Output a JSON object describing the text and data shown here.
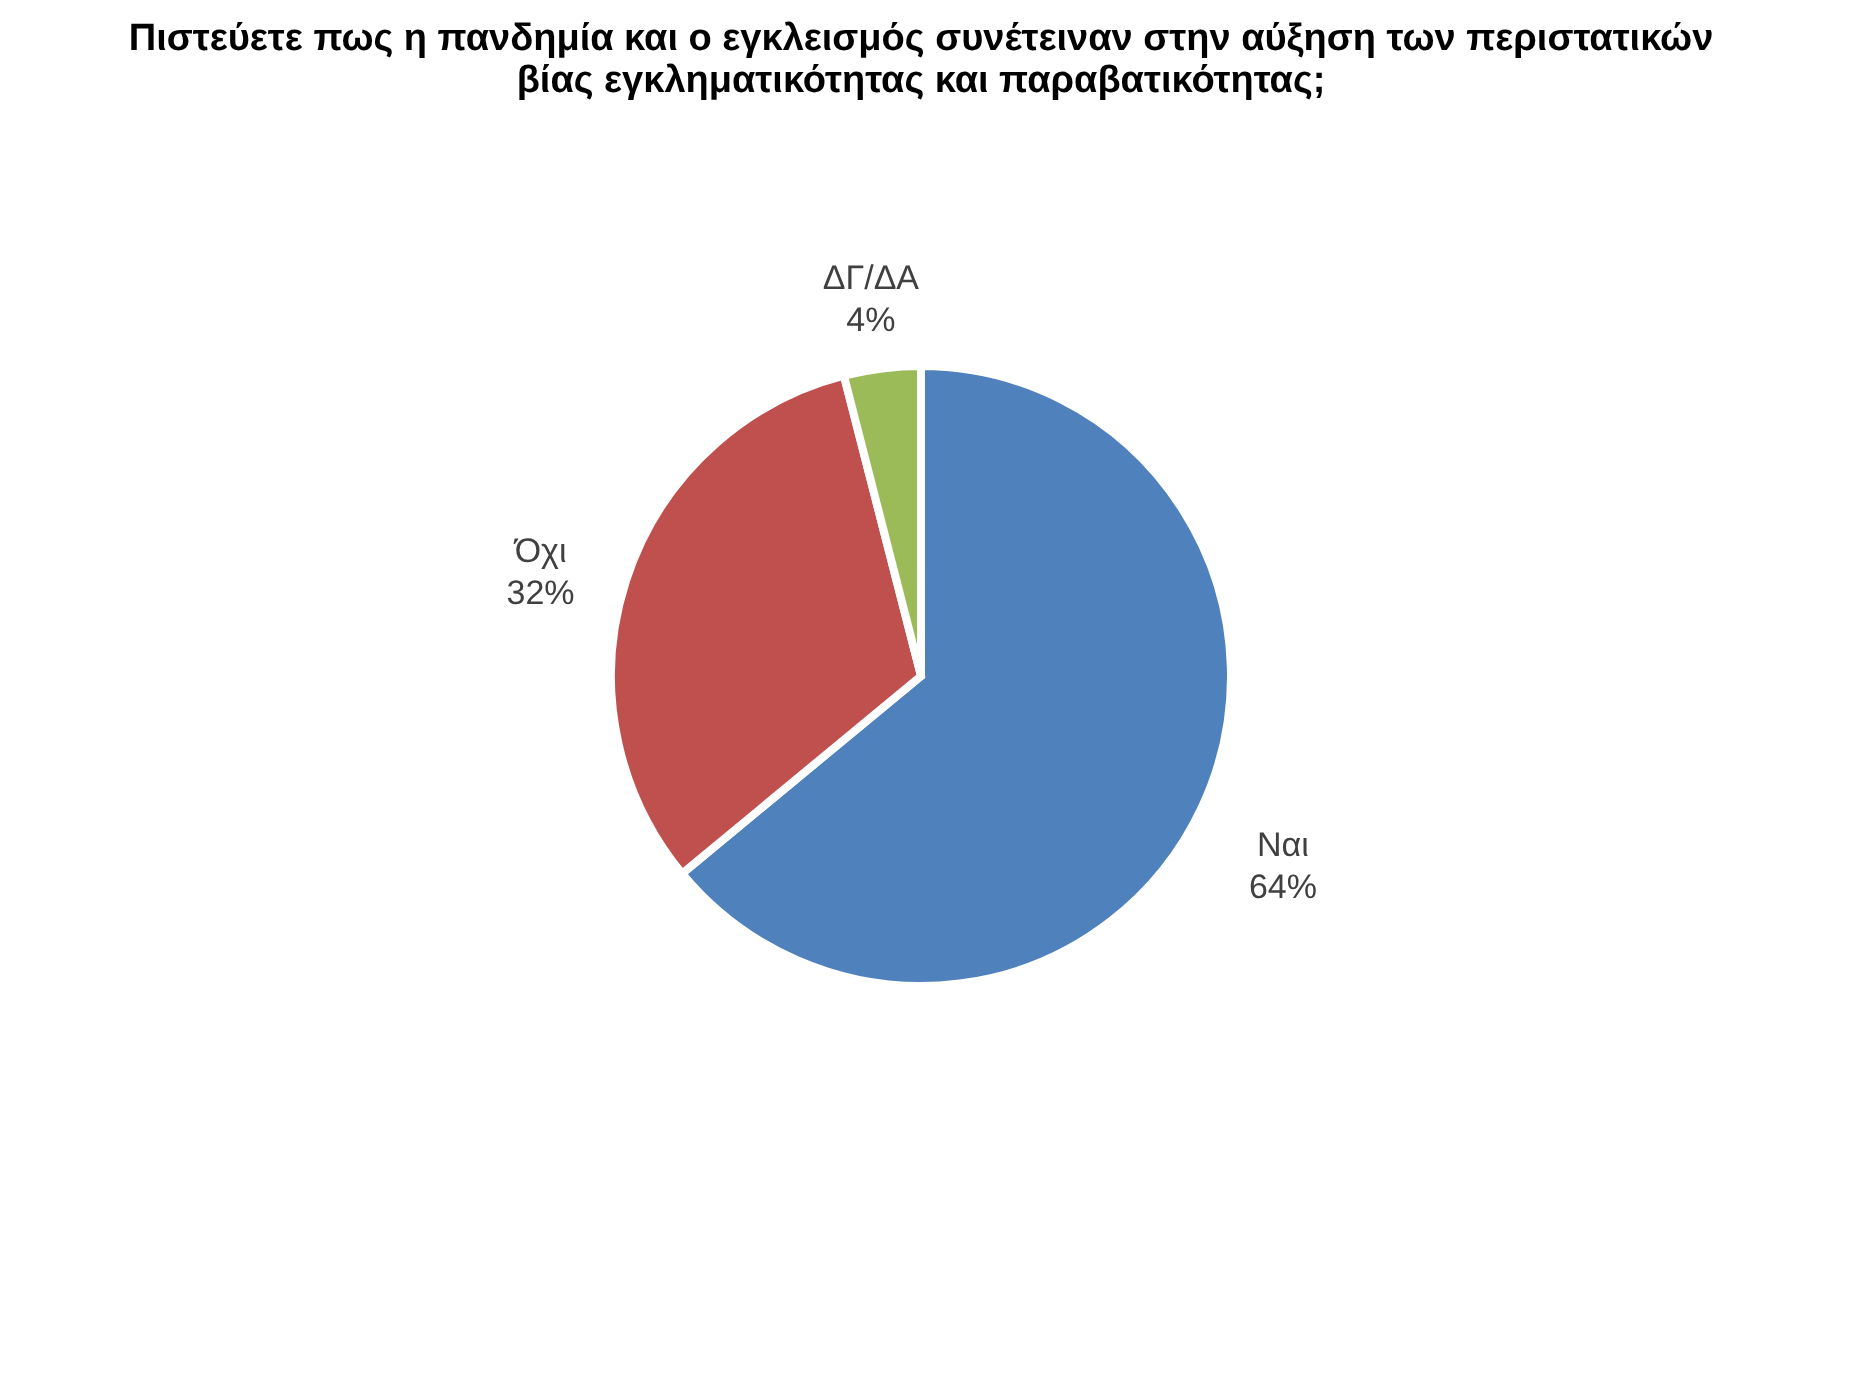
{
  "chart_data": {
    "type": "pie",
    "title": "Πιστεύετε πως η πανδημία και ο εγκλεισμός συνέτειναν στην αύξηση των περιστατικών βίας εγκληματικότητας και παραβατικότητας;",
    "categories": [
      "Ναι",
      "Όχι",
      "ΔΓ/ΔΑ"
    ],
    "values": [
      64,
      32,
      4
    ],
    "colors": [
      "#4f81bd",
      "#c0504d",
      "#9bbb59"
    ],
    "value_labels": [
      "64%",
      "32%",
      "4%"
    ],
    "legend": false
  }
}
